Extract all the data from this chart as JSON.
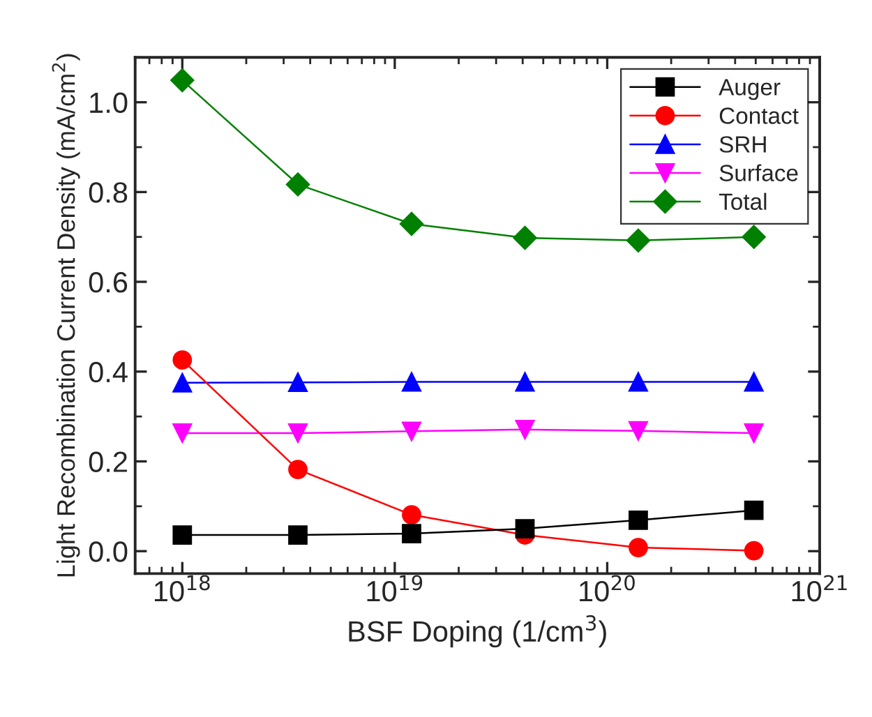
{
  "chart_data": {
    "type": "line",
    "xlabel": "BSF Doping (1/cm$^{3}$)",
    "ylabel": "Light Recombination Current Density (mA/cm$^{2}$)",
    "x": [
      1e+18,
      3.5e+18,
      1.2e+19,
      4.1e+19,
      1.4e+20,
      4.9e+20
    ],
    "log": "x",
    "xlim": [
      6e+17,
      1e+21
    ],
    "xticks": [
      {
        "value": 1e+18,
        "label": "10$^{18}$"
      },
      {
        "value": 1e+19,
        "label": "10$^{19}$"
      },
      {
        "value": 1e+20,
        "label": "10$^{20}$"
      },
      {
        "value": 1e+21,
        "label": "10$^{21}$"
      }
    ],
    "ylim": [
      -0.05,
      1.1
    ],
    "yticks": [
      {
        "value": 0.0,
        "label": "0.0"
      },
      {
        "value": 0.2,
        "label": "0.2"
      },
      {
        "value": 0.4,
        "label": "0.4"
      },
      {
        "value": 0.6,
        "label": "0.6"
      },
      {
        "value": 0.8,
        "label": "0.8"
      },
      {
        "value": 1.0,
        "label": "1.0"
      }
    ],
    "grid": false,
    "legend": "top right",
    "line_style": "solid",
    "series": [
      {
        "name": "Auger",
        "color": "#000000",
        "marker": "square",
        "values": [
          0.036,
          0.036,
          0.039,
          0.05,
          0.069,
          0.091
        ]
      },
      {
        "name": "Contact",
        "color": "#ff0000",
        "marker": "circle",
        "values": [
          0.426,
          0.182,
          0.081,
          0.036,
          0.008,
          0.001
        ]
      },
      {
        "name": "SRH",
        "color": "#0000ff",
        "marker": "triangle",
        "values": [
          0.375,
          0.376,
          0.377,
          0.377,
          0.377,
          0.377
        ]
      },
      {
        "name": "Surface",
        "color": "#ff00ff",
        "marker": "triangle_down",
        "values": [
          0.263,
          0.263,
          0.267,
          0.271,
          0.268,
          0.263
        ]
      },
      {
        "name": "Total",
        "color": "#008000",
        "marker": "diamond",
        "values": [
          1.049,
          0.817,
          0.729,
          0.698,
          0.692,
          0.7
        ]
      }
    ]
  }
}
